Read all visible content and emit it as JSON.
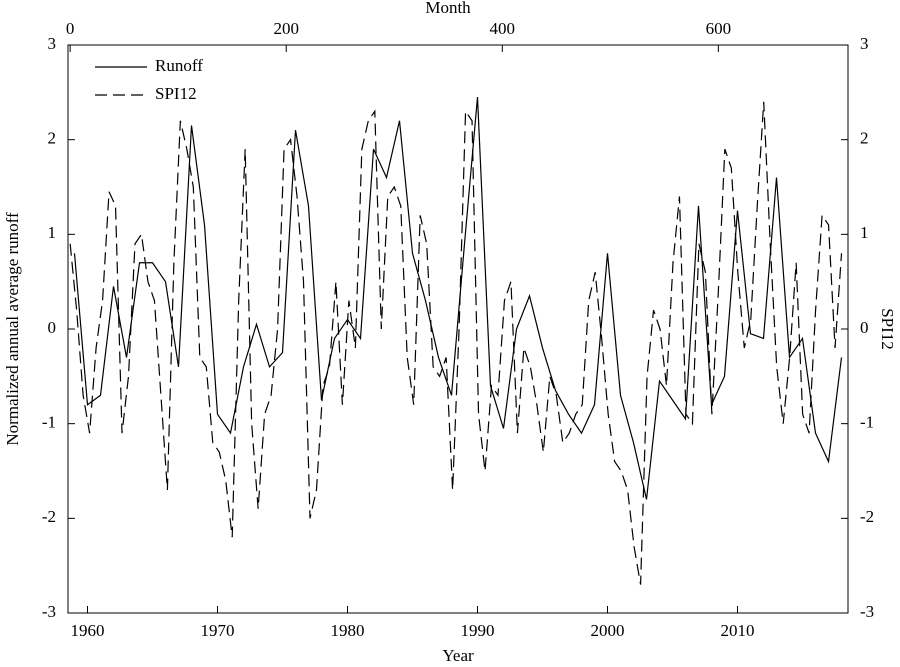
{
  "chart_data": {
    "type": "line",
    "xlabel": "Year",
    "x2label": "Month",
    "ylabel": "Normalized annual average runoff",
    "y2label": "SPI12",
    "xlim": [
      1958.5,
      2018.5
    ],
    "xticks": [
      1960,
      1970,
      1980,
      1990,
      2000,
      2010
    ],
    "x2lim": [
      -2,
      720
    ],
    "x2ticks": [
      0,
      200,
      400,
      600
    ],
    "ylim": [
      -3,
      3
    ],
    "yticks": [
      -3,
      -2,
      -1,
      0,
      1,
      2,
      3
    ],
    "y2lim": [
      -3,
      3
    ],
    "y2ticks": [
      -3,
      -2,
      -1,
      0,
      1,
      2,
      3
    ],
    "legend": "upper left",
    "series": [
      {
        "name": "Runoff",
        "color": "#000000",
        "dash": "solid",
        "x": [
          1959,
          1960,
          1961,
          1962,
          1963,
          1964,
          1965,
          1966,
          1967,
          1968,
          1969,
          1970,
          1971,
          1972,
          1973,
          1974,
          1975,
          1976,
          1977,
          1978,
          1979,
          1980,
          1981,
          1982,
          1983,
          1984,
          1985,
          1986,
          1987,
          1988,
          1989,
          1990,
          1991,
          1992,
          1993,
          1994,
          1995,
          1996,
          1997,
          1998,
          1999,
          2000,
          2001,
          2002,
          2003,
          2004,
          2005,
          2006,
          2007,
          2008,
          2009,
          2010,
          2011,
          2012,
          2013,
          2014,
          2015,
          2016,
          2017,
          2018
        ],
        "values": [
          0.8,
          -0.8,
          -0.7,
          0.45,
          -0.3,
          0.7,
          0.7,
          0.5,
          -0.4,
          2.15,
          1.1,
          -0.9,
          -1.1,
          -0.4,
          0.05,
          -0.4,
          -0.25,
          2.1,
          1.3,
          -0.75,
          -0.1,
          0.1,
          -0.1,
          1.9,
          1.6,
          2.2,
          0.8,
          0.3,
          -0.3,
          -0.7,
          0.9,
          2.45,
          -0.6,
          -1.05,
          0,
          0.35,
          -0.2,
          -0.65,
          -0.9,
          -1.1,
          -0.8,
          0.8,
          -0.7,
          -1.2,
          -1.8,
          -0.55,
          -0.75,
          -0.95,
          1.3,
          -0.8,
          -0.5,
          1.25,
          -0.05,
          -0.1,
          1.6,
          -0.3,
          -0.1,
          -1.1,
          -1.4,
          -0.3
        ]
      },
      {
        "name": "SPI12",
        "color": "#000000",
        "dash": "dashed",
        "axis": "y2",
        "xaxis": "x2",
        "x": [
          0,
          6,
          12,
          18,
          24,
          30,
          36,
          42,
          48,
          54,
          60,
          66,
          72,
          78,
          84,
          90,
          96,
          102,
          108,
          114,
          120,
          126,
          132,
          138,
          144,
          150,
          156,
          162,
          168,
          174,
          180,
          186,
          192,
          198,
          204,
          210,
          216,
          222,
          228,
          234,
          240,
          246,
          252,
          258,
          264,
          270,
          276,
          282,
          288,
          294,
          300,
          306,
          312,
          318,
          324,
          330,
          336,
          342,
          348,
          354,
          360,
          366,
          372,
          378,
          384,
          390,
          396,
          402,
          408,
          414,
          420,
          426,
          432,
          438,
          444,
          450,
          456,
          462,
          468,
          474,
          480,
          486,
          492,
          498,
          504,
          510,
          516,
          522,
          528,
          534,
          540,
          546,
          552,
          558,
          564,
          570,
          576,
          582,
          588,
          594,
          600,
          606,
          612,
          618,
          624,
          630,
          636,
          642,
          648,
          654,
          660,
          666,
          672,
          678,
          684,
          690,
          696,
          702,
          708,
          714
        ],
        "values": [
          0.9,
          0.2,
          -0.7,
          -1.1,
          -0.2,
          0.3,
          1.45,
          1.3,
          -1.1,
          -0.5,
          0.9,
          1.0,
          0.5,
          0.3,
          -0.7,
          -1.7,
          0.7,
          2.2,
          1.9,
          1.5,
          -0.3,
          -0.4,
          -1.2,
          -1.3,
          -1.6,
          -2.2,
          0.3,
          1.9,
          -1.0,
          -1.9,
          -0.9,
          -0.7,
          0.0,
          1.9,
          2.0,
          1.4,
          0.5,
          -2.0,
          -1.7,
          -0.6,
          -0.4,
          0.5,
          -0.8,
          0.3,
          -0.2,
          1.9,
          2.2,
          2.3,
          0.0,
          1.4,
          1.5,
          1.3,
          -0.3,
          -0.8,
          1.2,
          0.9,
          -0.4,
          -0.5,
          -0.3,
          -1.7,
          0.0,
          2.3,
          2.2,
          -0.9,
          -1.5,
          -0.6,
          -0.7,
          0.3,
          0.5,
          -1.1,
          -0.2,
          -0.4,
          -0.8,
          -1.3,
          -0.5,
          -0.7,
          -1.2,
          -1.1,
          -0.9,
          -0.8,
          0.3,
          0.6,
          -0.1,
          -0.9,
          -1.4,
          -1.5,
          -1.7,
          -2.3,
          -2.7,
          -0.5,
          0.2,
          0.0,
          -0.6,
          0.7,
          1.4,
          -0.9,
          -1.0,
          0.9,
          0.6,
          -0.9,
          0.4,
          1.9,
          1.7,
          0.6,
          -0.2,
          0.1,
          1.3,
          2.4,
          0.9,
          -0.4,
          -1.0,
          -0.3,
          0.7,
          -0.9,
          -1.1,
          0.2,
          1.2,
          1.1,
          -0.2,
          0.8
        ]
      }
    ]
  }
}
